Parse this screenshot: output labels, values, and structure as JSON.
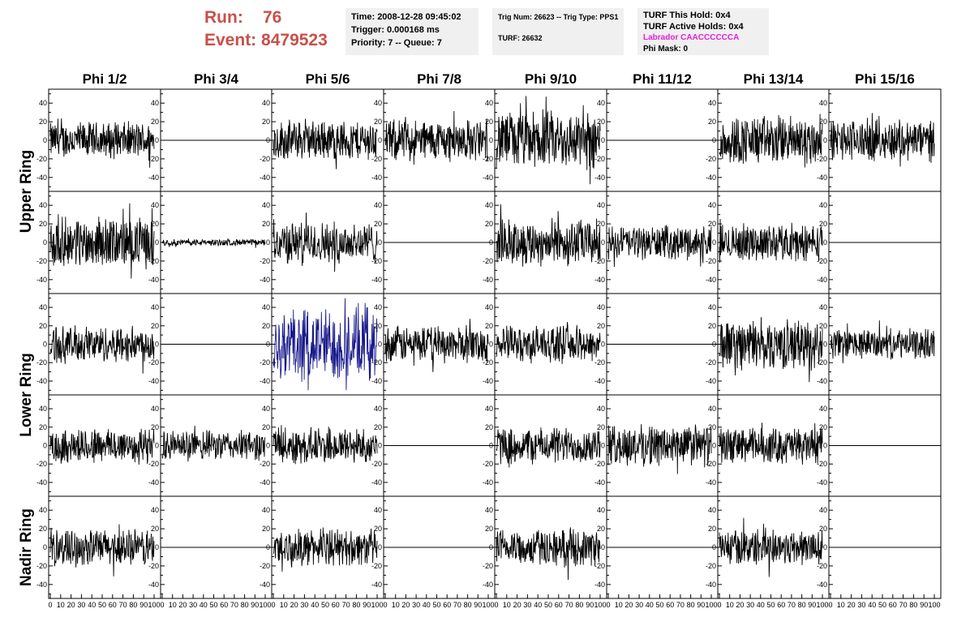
{
  "header": {
    "run_label": "Run:",
    "run_value": "76",
    "event_label": "Event:",
    "event_value": "8479523",
    "time": "Time: 2008-12-28 09:45:02",
    "trigger": "Trigger: 0.000168 ms",
    "priority": "Priority: 7 -- Queue: 7",
    "trig_num": "Trig Num: 26623 -- Trig Type: PPS1",
    "turf": "TURF: 26632",
    "turf_this_hold": "TURF This Hold: 0x4",
    "turf_active_holds": "TURF Active Holds: 0x4",
    "labrador": "Labrador CAACCCCCCA",
    "phi_mask": "Phi Mask: 0"
  },
  "colors": {
    "run_text": "#c8504a",
    "labrador": "#e020d8",
    "highlight_trace": "#1a1a8c",
    "trace": "#000000",
    "info_bg": "#f0f0f0"
  },
  "chart_data": {
    "type": "line",
    "phi_labels": [
      "Phi 1/2",
      "Phi 3/4",
      "Phi 5/6",
      "Phi 7/8",
      "Phi 9/10",
      "Phi 11/12",
      "Phi 13/14",
      "Phi 15/16"
    ],
    "ring_labels": [
      "Upper Ring",
      "Lower Ring",
      "Nadir Ring"
    ],
    "ring_row_groups": [
      [
        0,
        1
      ],
      [
        2,
        3
      ],
      [
        4
      ]
    ],
    "x_ticks": [
      "0",
      "10",
      "20",
      "30",
      "40",
      "50",
      "60",
      "70",
      "80",
      "90",
      "100"
    ],
    "y_ticks": [
      "40",
      "20",
      "0",
      "-20",
      "-40"
    ],
    "xlim": [
      0,
      100
    ],
    "ylim": [
      -55,
      55
    ],
    "samples_per_trace": 260,
    "amplitude": [
      [
        22,
        0,
        24,
        25,
        35,
        0,
        30,
        25
      ],
      [
        30,
        4,
        25,
        0,
        28,
        20,
        22,
        0
      ],
      [
        22,
        0,
        45,
        22,
        22,
        0,
        30,
        18
      ],
      [
        22,
        18,
        22,
        0,
        22,
        25,
        22,
        0
      ],
      [
        22,
        0,
        22,
        0,
        22,
        0,
        22,
        0
      ]
    ],
    "highlight": {
      "row": 2,
      "col": 2
    }
  }
}
